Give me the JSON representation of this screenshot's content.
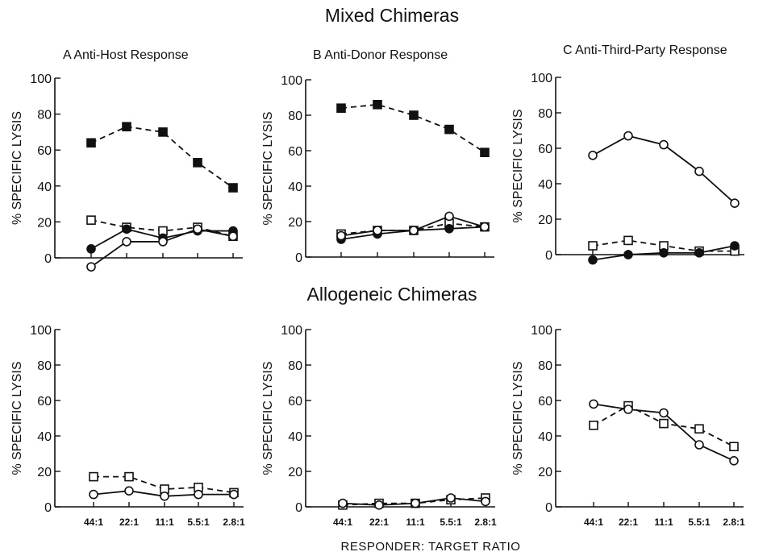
{
  "figure": {
    "section_titles": [
      "Mixed Chimeras",
      "Allogeneic Chimeras"
    ],
    "xlabel": "RESPONDER: TARGET RATIO"
  },
  "chart_data": [
    {
      "type": "line",
      "panel": "A",
      "title": "A  Anti-Host Response",
      "section": "Mixed Chimeras",
      "categories": [
        "44:1",
        "22:1",
        "11:1",
        "5.5:1",
        "2.8:1"
      ],
      "ylabel": "% SPECIFIC LYSIS",
      "ylim": [
        0,
        100
      ],
      "yticks": [
        0,
        20,
        40,
        60,
        80,
        100
      ],
      "show_xticklabels": false,
      "series": [
        {
          "marker": "filled-square",
          "line": "dashed",
          "values": [
            64,
            73,
            70,
            53,
            39
          ]
        },
        {
          "marker": "open-square",
          "line": "dashed",
          "values": [
            21,
            17,
            15,
            17,
            12
          ]
        },
        {
          "marker": "filled-circle",
          "line": "solid",
          "values": [
            5,
            16,
            11,
            15,
            15
          ]
        },
        {
          "marker": "open-circle",
          "line": "solid",
          "values": [
            -5,
            9,
            9,
            16,
            12
          ]
        }
      ]
    },
    {
      "type": "line",
      "panel": "B",
      "title": "B  Anti-Donor Response",
      "section": "Mixed Chimeras",
      "categories": [
        "44:1",
        "22:1",
        "11:1",
        "5.5:1",
        "2.8:1"
      ],
      "ylabel": "% SPECIFIC LYSIS",
      "ylim": [
        0,
        100
      ],
      "yticks": [
        0,
        20,
        40,
        60,
        80,
        100
      ],
      "show_xticklabels": false,
      "series": [
        {
          "marker": "filled-square",
          "line": "dashed",
          "values": [
            84,
            86,
            80,
            72,
            59
          ]
        },
        {
          "marker": "open-square",
          "line": "dashed",
          "values": [
            13,
            15,
            15,
            19,
            17
          ]
        },
        {
          "marker": "filled-circle",
          "line": "solid",
          "values": [
            10,
            13,
            15,
            16,
            17
          ]
        },
        {
          "marker": "open-circle",
          "line": "solid",
          "values": [
            12,
            15,
            15,
            23,
            17
          ]
        }
      ]
    },
    {
      "type": "line",
      "panel": "C",
      "title": "C  Anti-Third-Party Response",
      "section": "Mixed Chimeras",
      "categories": [
        "44:1",
        "22:1",
        "11:1",
        "5.5:1",
        "2.8:1"
      ],
      "ylabel": "% SPECIFIC LYSIS",
      "ylim": [
        0,
        100
      ],
      "yticks": [
        0,
        20,
        40,
        60,
        80,
        100
      ],
      "show_xticklabels": false,
      "series": [
        {
          "marker": "open-circle",
          "line": "solid",
          "values": [
            56,
            67,
            62,
            47,
            29
          ]
        },
        {
          "marker": "open-square",
          "line": "dashed",
          "values": [
            5,
            8,
            5,
            2,
            2
          ]
        },
        {
          "marker": "filled-circle",
          "line": "solid",
          "values": [
            -3,
            0,
            1,
            1,
            5
          ]
        }
      ]
    },
    {
      "type": "line",
      "panel": "D",
      "title": "",
      "section": "Allogeneic Chimeras",
      "categories": [
        "44:1",
        "22:1",
        "11:1",
        "5.5:1",
        "2.8:1"
      ],
      "ylabel": "% SPECIFIC LYSIS",
      "ylim": [
        0,
        100
      ],
      "yticks": [
        0,
        20,
        40,
        60,
        80,
        100
      ],
      "show_xticklabels": true,
      "series": [
        {
          "marker": "open-square",
          "line": "dashed",
          "values": [
            17,
            17,
            10,
            11,
            8
          ]
        },
        {
          "marker": "open-circle",
          "line": "solid",
          "values": [
            7,
            9,
            6,
            7,
            7
          ]
        }
      ]
    },
    {
      "type": "line",
      "panel": "E",
      "title": "",
      "section": "Allogeneic Chimeras",
      "categories": [
        "44:1",
        "22:1",
        "11:1",
        "5.5:1",
        "2.8:1"
      ],
      "ylabel": "% SPECIFIC LYSIS",
      "ylim": [
        0,
        100
      ],
      "yticks": [
        0,
        20,
        40,
        60,
        80,
        100
      ],
      "show_xticklabels": true,
      "series": [
        {
          "marker": "open-square",
          "line": "dashed",
          "values": [
            1,
            2,
            2,
            4,
            5
          ]
        },
        {
          "marker": "open-circle",
          "line": "solid",
          "values": [
            2,
            1,
            2,
            5,
            3
          ]
        }
      ]
    },
    {
      "type": "line",
      "panel": "F",
      "title": "",
      "section": "Allogeneic Chimeras",
      "categories": [
        "44:1",
        "22:1",
        "11:1",
        "5.5:1",
        "2.8:1"
      ],
      "ylabel": "% SPECIFIC LYSIS",
      "ylim": [
        0,
        100
      ],
      "yticks": [
        0,
        20,
        40,
        60,
        80,
        100
      ],
      "show_xticklabels": true,
      "series": [
        {
          "marker": "open-square",
          "line": "dashed",
          "values": [
            46,
            57,
            47,
            44,
            34
          ]
        },
        {
          "marker": "open-circle",
          "line": "solid",
          "values": [
            58,
            55,
            53,
            35,
            26
          ]
        }
      ]
    }
  ]
}
